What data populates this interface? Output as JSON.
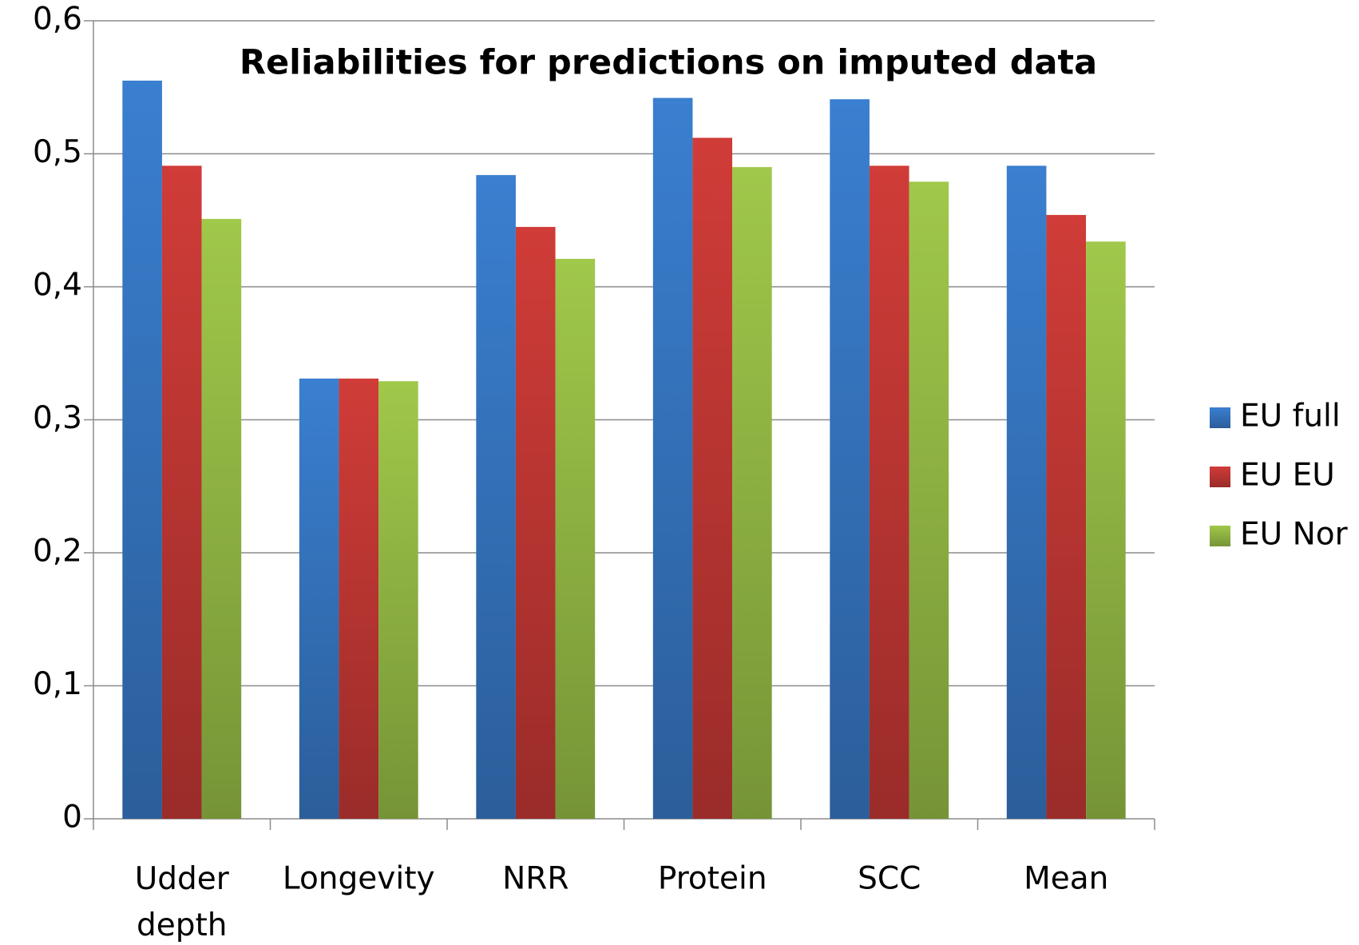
{
  "chart_data": {
    "type": "bar",
    "title": "Reliabilities for predictions on imputed data",
    "categories": [
      "Udder depth",
      "Longevity",
      "NRR",
      "Protein",
      "SCC",
      "Mean"
    ],
    "series": [
      {
        "name": "EU full",
        "color": "#3a7fd0",
        "values": [
          0.555,
          0.331,
          0.484,
          0.542,
          0.541,
          0.491
        ]
      },
      {
        "name": "EU EU",
        "color": "#d03c38",
        "values": [
          0.491,
          0.331,
          0.445,
          0.512,
          0.491,
          0.454
        ]
      },
      {
        "name": "EU Nor",
        "color": "#a0c84a",
        "values": [
          0.451,
          0.329,
          0.421,
          0.49,
          0.479,
          0.434
        ]
      }
    ],
    "ylim": [
      0,
      0.6
    ],
    "yticks": [
      0,
      {
        "value": 0.1,
        "label": "0,1"
      },
      {
        "value": 0.2,
        "label": "0,2"
      },
      {
        "value": 0.3,
        "label": "0,3"
      },
      {
        "value": 0.4,
        "label": "0,4"
      },
      {
        "value": 0.5,
        "label": "0,5"
      },
      {
        "value": 0.6,
        "label": "0,6"
      }
    ],
    "grid": true,
    "legend": "right"
  }
}
